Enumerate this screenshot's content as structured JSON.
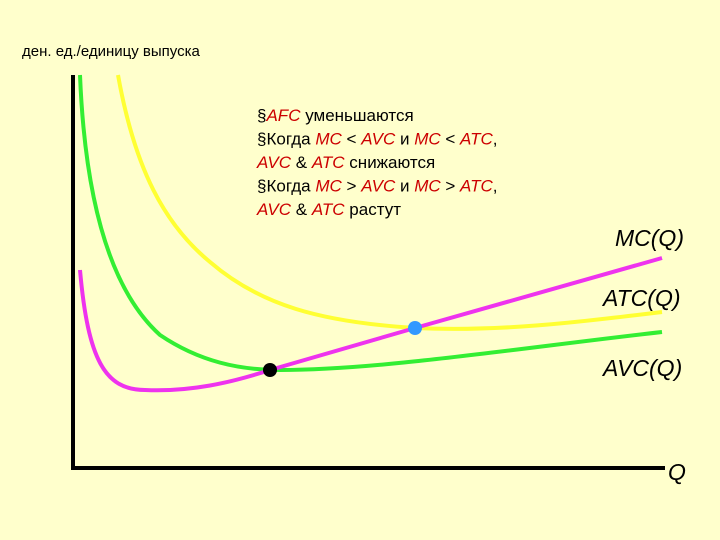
{
  "axis_label": "ден. ед./единицу выпуска",
  "notes": [
    {
      "bullet": "§",
      "runs": [
        {
          "text": "AFC",
          "color": "#cc0000"
        },
        {
          "text": " уменьшаются"
        }
      ]
    },
    {
      "bullet": "§",
      "runs": [
        {
          "text": "Когда "
        },
        {
          "text": "MC",
          "color": "#cc0000"
        },
        {
          "text": " < "
        },
        {
          "text": "AVC",
          "color": "#cc0000"
        },
        {
          "text": " и "
        },
        {
          "text": "MC",
          "color": "#cc0000"
        },
        {
          "text": " < "
        },
        {
          "text": "ATC",
          "color": "#cc0000"
        },
        {
          "text": ","
        }
      ]
    },
    {
      "runs": [
        {
          "text": "AVC",
          "color": "#cc0000"
        },
        {
          "text": " & "
        },
        {
          "text": "ATC",
          "color": "#cc0000"
        },
        {
          "text": " снижаются"
        }
      ]
    },
    {
      "bullet": "§",
      "runs": [
        {
          "text": "Когда "
        },
        {
          "text": "MC",
          "color": "#cc0000"
        },
        {
          "text": " > "
        },
        {
          "text": "AVC",
          "color": "#cc0000"
        },
        {
          "text": " и "
        },
        {
          "text": "MC",
          "color": "#cc0000"
        },
        {
          "text": " > "
        },
        {
          "text": "ATC",
          "color": "#cc0000"
        },
        {
          "text": ","
        }
      ]
    },
    {
      "runs": [
        {
          "text": "AVC",
          "color": "#cc0000"
        },
        {
          "text": " & "
        },
        {
          "text": "ATC",
          "color": "#cc0000"
        },
        {
          "text": " растут"
        }
      ]
    }
  ],
  "curve_labels": {
    "mc": "MC(Q)",
    "atc": "ATC(Q)",
    "avc": "AVC(Q)"
  },
  "x_axis_label": "Q"
}
